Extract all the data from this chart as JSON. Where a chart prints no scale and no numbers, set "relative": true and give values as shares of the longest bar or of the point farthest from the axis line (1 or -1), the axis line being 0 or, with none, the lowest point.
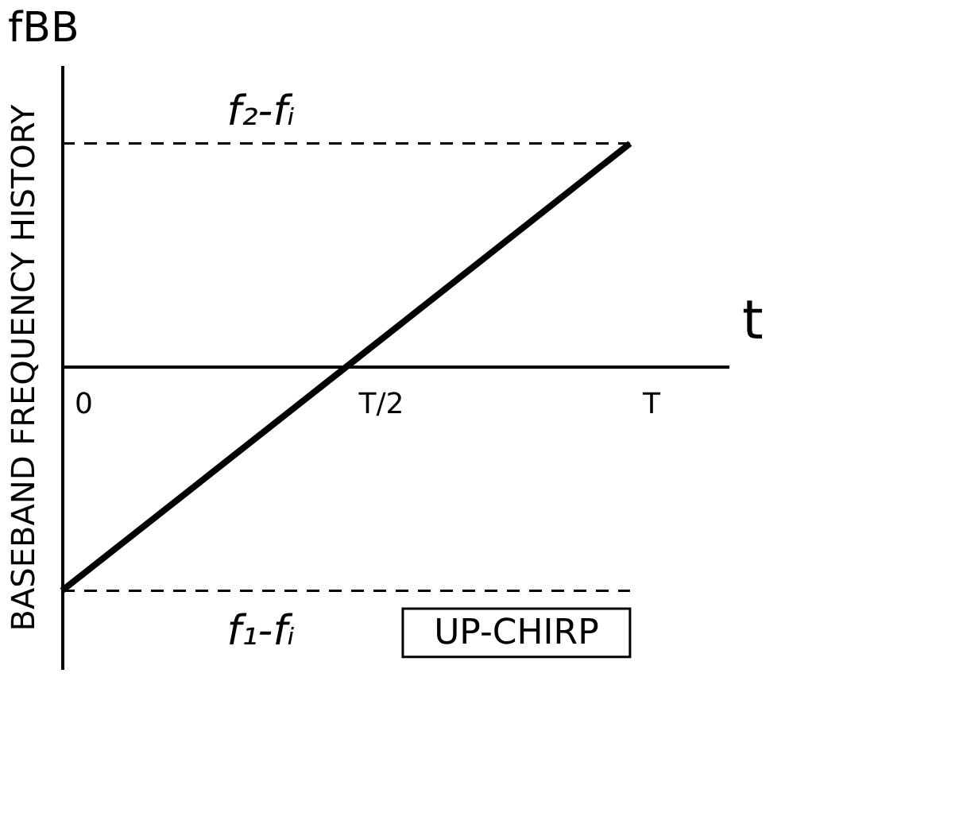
{
  "chart_data": {
    "type": "line",
    "relative": true,
    "categories": [
      "0",
      "T/2",
      "T"
    ],
    "values": [
      -1,
      0,
      1
    ],
    "color": "#000000",
    "xlabel": "t",
    "ylabel": "BASEBAND FREQUENCY HISTORY",
    "title": "fBB",
    "ref_lines": [
      {
        "axis": "y",
        "value": 1,
        "label": "f₂-fᵢ",
        "line_style": "dashed",
        "color": "#000000"
      },
      {
        "axis": "y",
        "value": -1,
        "label": "f₁-fᵢ",
        "line_style": "dashed",
        "color": "#000000"
      }
    ],
    "annotations": [
      "UP-CHIRP"
    ],
    "grid": false,
    "marker": "none",
    "line_style": "solid"
  }
}
